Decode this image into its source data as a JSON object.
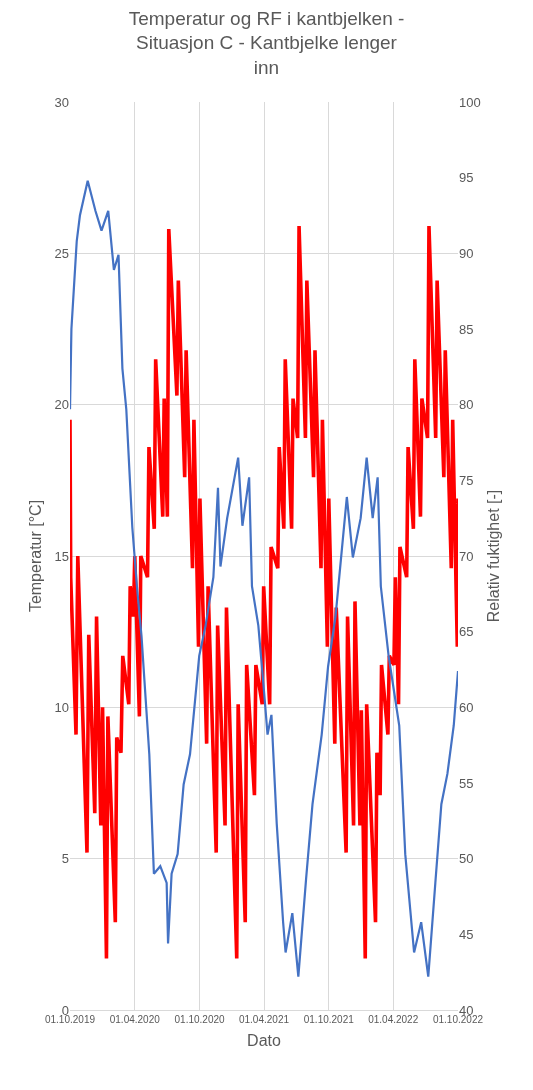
{
  "chart_data": {
    "type": "line",
    "title": "Temperatur og RF i kantbjelken - Situasjon C - Kantbjelke lenger inn",
    "xlabel": "Dato",
    "ylabel": "Temperatur [°C]",
    "y2label": "Relativ fuktighet [-]",
    "xlim": [
      "2019-10-01",
      "2022-10-01"
    ],
    "xticks": [
      {
        "value": "2019-10-01",
        "label": "01.10.2019"
      },
      {
        "value": "2020-04-01",
        "label": "01.04.2020"
      },
      {
        "value": "2020-10-01",
        "label": "01.10.2020"
      },
      {
        "value": "2021-04-01",
        "label": "01.04.2021"
      },
      {
        "value": "2021-10-01",
        "label": "01.10.2021"
      },
      {
        "value": "2022-04-01",
        "label": "01.04.2022"
      },
      {
        "value": "2022-10-01",
        "label": "01.10.2022"
      }
    ],
    "ylim": [
      0,
      30
    ],
    "yticks": [
      0,
      5,
      10,
      15,
      20,
      25,
      30
    ],
    "y2lim": [
      40,
      100
    ],
    "y2ticks": [
      40,
      45,
      50,
      55,
      60,
      65,
      70,
      75,
      80,
      85,
      90,
      95,
      100
    ],
    "grid": true,
    "series": [
      {
        "color": "#ff0000",
        "axis": "y",
        "x": [
          "2019-10-01",
          "2019-10-03",
          "2019-10-18",
          "2019-10-23",
          "2019-11-18",
          "2019-11-23",
          "2019-12-10",
          "2019-12-15",
          "2019-12-27",
          "2020-01-01",
          "2020-01-12",
          "2020-01-16",
          "2020-02-06",
          "2020-02-10",
          "2020-02-22",
          "2020-02-27",
          "2020-03-15",
          "2020-03-19",
          "2020-03-28",
          "2020-04-01",
          "2020-04-14",
          "2020-04-18",
          "2020-05-07",
          "2020-05-11",
          "2020-05-26",
          "2020-05-30",
          "2020-06-19",
          "2020-06-23",
          "2020-07-02",
          "2020-07-06",
          "2020-07-29",
          "2020-08-02",
          "2020-08-20",
          "2020-08-24",
          "2020-09-11",
          "2020-09-15",
          "2020-09-28",
          "2020-10-02",
          "2020-10-21",
          "2020-10-25",
          "2020-11-17",
          "2020-11-21",
          "2020-12-12",
          "2020-12-16",
          "2021-01-14",
          "2021-01-18",
          "2021-02-07",
          "2021-02-11",
          "2021-03-05",
          "2021-03-09",
          "2021-03-27",
          "2021-03-31",
          "2021-04-17",
          "2021-04-21",
          "2021-05-10",
          "2021-05-14",
          "2021-05-27",
          "2021-05-31",
          "2021-06-18",
          "2021-06-22",
          "2021-07-05",
          "2021-07-09",
          "2021-07-27",
          "2021-07-31",
          "2021-08-19",
          "2021-08-23",
          "2021-09-09",
          "2021-09-13",
          "2021-09-27",
          "2021-10-01",
          "2021-10-18",
          "2021-10-22",
          "2021-11-19",
          "2021-11-23",
          "2021-12-10",
          "2021-12-14",
          "2021-12-28",
          "2022-01-01",
          "2022-01-12",
          "2022-01-16",
          "2022-02-10",
          "2022-02-14",
          "2022-02-23",
          "2022-02-27",
          "2022-03-17",
          "2022-03-21",
          "2022-04-03",
          "2022-04-07",
          "2022-04-16",
          "2022-04-20",
          "2022-05-09",
          "2022-05-13",
          "2022-05-28",
          "2022-06-01",
          "2022-06-17",
          "2022-06-21",
          "2022-07-07",
          "2022-07-11",
          "2022-07-30",
          "2022-08-03",
          "2022-08-22",
          "2022-08-26",
          "2022-09-12",
          "2022-09-16",
          "2022-09-29",
          "2022-10-01"
        ],
        "values": [
          19.5,
          14.3,
          9.1,
          15.0,
          5.2,
          12.4,
          6.5,
          13.0,
          6.1,
          10.0,
          1.7,
          9.7,
          2.9,
          9.0,
          8.5,
          11.7,
          10.1,
          14.0,
          13.0,
          15.0,
          9.7,
          15.0,
          14.3,
          18.6,
          15.9,
          21.5,
          16.3,
          20.2,
          16.3,
          25.8,
          20.3,
          24.1,
          17.6,
          21.8,
          14.6,
          19.5,
          12.0,
          16.9,
          8.8,
          14.0,
          5.2,
          12.7,
          6.1,
          13.3,
          1.7,
          10.1,
          2.9,
          11.4,
          7.1,
          11.4,
          10.1,
          14.0,
          10.1,
          15.3,
          14.6,
          18.6,
          15.9,
          21.5,
          15.9,
          20.2,
          18.9,
          25.9,
          18.9,
          24.1,
          17.6,
          21.8,
          14.6,
          19.5,
          12.0,
          16.9,
          8.8,
          13.3,
          5.2,
          13.0,
          6.1,
          13.5,
          6.1,
          9.9,
          1.7,
          10.1,
          2.9,
          8.5,
          7.1,
          11.4,
          9.1,
          11.7,
          11.4,
          14.3,
          10.1,
          15.3,
          14.3,
          18.6,
          15.9,
          21.5,
          16.3,
          20.2,
          18.9,
          25.9,
          18.9,
          24.1,
          17.6,
          21.8,
          14.6,
          19.5,
          12.0,
          16.9
        ]
      },
      {
        "color": "#4472c4",
        "axis": "y2",
        "x": [
          "2019-10-01",
          "2019-10-05",
          "2019-10-20",
          "2019-10-29",
          "2019-11-20",
          "2019-12-12",
          "2019-12-29",
          "2020-01-17",
          "2020-02-02",
          "2020-02-15",
          "2020-02-26",
          "2020-03-08",
          "2020-03-25",
          "2020-04-07",
          "2020-04-20",
          "2020-05-12",
          "2020-05-25",
          "2020-06-12",
          "2020-06-30",
          "2020-07-04",
          "2020-07-14",
          "2020-07-31",
          "2020-08-17",
          "2020-09-04",
          "2020-09-30",
          "2020-10-18",
          "2020-11-09",
          "2020-11-22",
          "2020-11-29",
          "2020-12-18",
          "2021-01-18",
          "2021-01-30",
          "2021-02-18",
          "2021-02-26",
          "2021-03-16",
          "2021-04-02",
          "2021-04-11",
          "2021-04-22",
          "2021-05-07",
          "2021-05-25",
          "2021-06-01",
          "2021-06-20",
          "2021-07-07",
          "2021-07-29",
          "2021-08-16",
          "2021-09-11",
          "2021-09-29",
          "2021-10-20",
          "2021-11-21",
          "2021-12-08",
          "2021-12-30",
          "2022-01-16",
          "2022-02-02",
          "2022-02-16",
          "2022-02-25",
          "2022-03-19",
          "2022-04-05",
          "2022-04-18",
          "2022-05-05",
          "2022-05-30",
          "2022-06-19",
          "2022-07-09",
          "2022-07-29",
          "2022-08-15",
          "2022-09-01",
          "2022-09-19",
          "2022-10-01"
        ],
        "values": [
          79.7,
          85.0,
          90.8,
          92.5,
          94.8,
          92.8,
          91.5,
          92.8,
          88.9,
          89.9,
          82.4,
          79.7,
          71.9,
          68.0,
          64.7,
          56.9,
          49.0,
          49.5,
          48.4,
          44.4,
          49.0,
          50.3,
          54.9,
          56.9,
          63.4,
          65.4,
          68.6,
          74.5,
          69.3,
          72.5,
          76.5,
          72.0,
          75.2,
          68.0,
          65.4,
          60.8,
          58.2,
          59.5,
          52.3,
          45.8,
          43.8,
          46.4,
          42.2,
          48.7,
          53.6,
          58.2,
          62.7,
          66.0,
          73.9,
          69.9,
          72.5,
          76.5,
          72.5,
          75.2,
          68.0,
          63.4,
          60.8,
          58.8,
          50.3,
          43.8,
          45.8,
          42.2,
          48.4,
          53.6,
          55.6,
          58.8,
          62.4
        ]
      }
    ]
  }
}
